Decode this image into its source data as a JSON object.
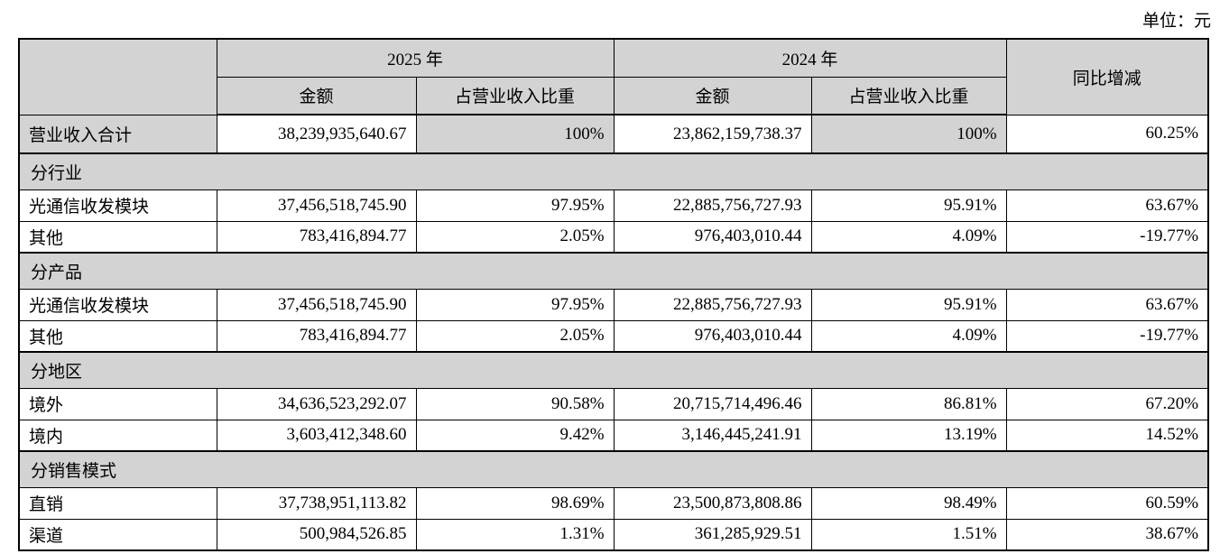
{
  "unit_label": "单位：元",
  "colors": {
    "shade": "#d3d3d3",
    "border": "#000000",
    "background": "#ffffff"
  },
  "table": {
    "header": {
      "corner": "",
      "year_2025": "2025 年",
      "year_2024": "2024 年",
      "yoy": "同比增减",
      "amount_2025": "金额",
      "share_2025": "占营业收入比重",
      "amount_2024": "金额",
      "share_2024": "占营业收入比重"
    },
    "rows": [
      {
        "type": "summary",
        "label": "营业收入合计",
        "values": [
          "38,239,935,640.67",
          "100%",
          "23,862,159,738.37",
          "100%",
          "60.25%"
        ]
      },
      {
        "type": "section",
        "label": "分行业"
      },
      {
        "type": "data",
        "label": "光通信收发模块",
        "values": [
          "37,456,518,745.90",
          "97.95%",
          "22,885,756,727.93",
          "95.91%",
          "63.67%"
        ]
      },
      {
        "type": "data",
        "label": "其他",
        "values": [
          "783,416,894.77",
          "2.05%",
          "976,403,010.44",
          "4.09%",
          "-19.77%"
        ]
      },
      {
        "type": "section",
        "label": "分产品"
      },
      {
        "type": "data",
        "label": "光通信收发模块",
        "values": [
          "37,456,518,745.90",
          "97.95%",
          "22,885,756,727.93",
          "95.91%",
          "63.67%"
        ]
      },
      {
        "type": "data",
        "label": "其他",
        "values": [
          "783,416,894.77",
          "2.05%",
          "976,403,010.44",
          "4.09%",
          "-19.77%"
        ]
      },
      {
        "type": "section",
        "label": "分地区"
      },
      {
        "type": "data",
        "label": "境外",
        "values": [
          "34,636,523,292.07",
          "90.58%",
          "20,715,714,496.46",
          "86.81%",
          "67.20%"
        ]
      },
      {
        "type": "data",
        "label": "境内",
        "values": [
          "3,603,412,348.60",
          "9.42%",
          "3,146,445,241.91",
          "13.19%",
          "14.52%"
        ]
      },
      {
        "type": "section",
        "label": "分销售模式"
      },
      {
        "type": "data",
        "label": "直销",
        "values": [
          "37,738,951,113.82",
          "98.69%",
          "23,500,873,808.86",
          "98.49%",
          "60.59%"
        ]
      },
      {
        "type": "data",
        "label": "渠道",
        "values": [
          "500,984,526.85",
          "1.31%",
          "361,285,929.51",
          "1.51%",
          "38.67%"
        ]
      }
    ]
  }
}
